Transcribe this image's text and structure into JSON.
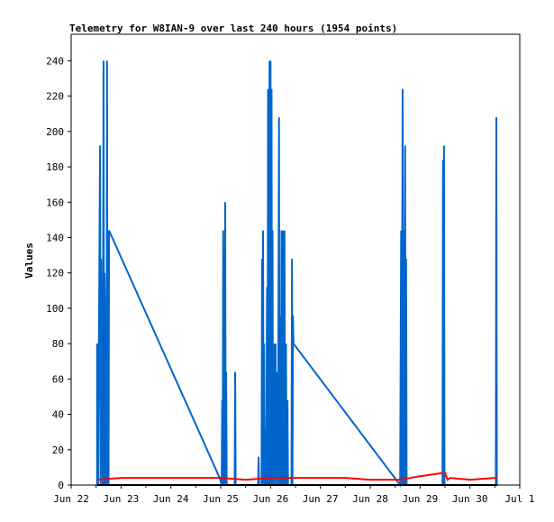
{
  "chart_data": {
    "type": "line",
    "title": "Telemetry for W8IAN-9 over last 240 hours (1954 points)",
    "xlabel": "",
    "ylabel": "Values",
    "xlim": [
      "Jun 22",
      "Jul 1"
    ],
    "ylim": [
      0,
      255
    ],
    "x_ticks": [
      "Jun 22",
      "Jun 23",
      "Jun 24",
      "Jun 25",
      "Jun 26",
      "Jun 27",
      "Jun 28",
      "Jun 29",
      "Jun 30",
      "Jul 1"
    ],
    "y_ticks": [
      0,
      20,
      40,
      60,
      80,
      100,
      120,
      140,
      160,
      180,
      200,
      220,
      240
    ],
    "grid": false,
    "legend": "none",
    "series": [
      {
        "color": "#0066cc",
        "x_unit": "days since Jun 22",
        "points": [
          [
            0.52,
            0
          ],
          [
            0.52,
            80
          ],
          [
            0.54,
            0
          ],
          [
            0.58,
            192
          ],
          [
            0.59,
            0
          ],
          [
            0.6,
            128
          ],
          [
            0.62,
            48
          ],
          [
            0.63,
            0
          ],
          [
            0.64,
            112
          ],
          [
            0.65,
            240
          ],
          [
            0.66,
            0
          ],
          [
            0.67,
            120
          ],
          [
            0.68,
            96
          ],
          [
            0.69,
            0
          ],
          [
            0.7,
            80
          ],
          [
            0.71,
            0
          ],
          [
            0.72,
            240
          ],
          [
            0.73,
            0
          ],
          [
            0.74,
            144
          ],
          [
            0.75,
            0
          ],
          [
            0.76,
            144
          ],
          [
            2.98,
            4
          ],
          [
            3.02,
            0
          ],
          [
            3.03,
            48
          ],
          [
            3.04,
            0
          ],
          [
            3.05,
            144
          ],
          [
            3.06,
            0
          ],
          [
            3.07,
            128
          ],
          [
            3.08,
            0
          ],
          [
            3.09,
            160
          ],
          [
            3.1,
            0
          ],
          [
            3.11,
            64
          ],
          [
            3.12,
            0
          ],
          [
            3.28,
            0
          ],
          [
            3.29,
            64
          ],
          [
            3.3,
            0
          ],
          [
            3.75,
            0
          ],
          [
            3.76,
            16
          ],
          [
            3.77,
            0
          ],
          [
            3.82,
            0
          ],
          [
            3.83,
            128
          ],
          [
            3.84,
            0
          ],
          [
            3.85,
            144
          ],
          [
            3.86,
            0
          ],
          [
            3.87,
            80
          ],
          [
            3.88,
            0
          ],
          [
            3.9,
            32
          ],
          [
            3.91,
            0
          ],
          [
            3.93,
            112
          ],
          [
            3.94,
            0
          ],
          [
            3.95,
            224
          ],
          [
            3.96,
            0
          ],
          [
            3.98,
            240
          ],
          [
            3.99,
            0
          ],
          [
            4.0,
            240
          ],
          [
            4.01,
            0
          ],
          [
            4.02,
            224
          ],
          [
            4.03,
            0
          ],
          [
            4.04,
            144
          ],
          [
            4.05,
            0
          ],
          [
            4.07,
            80
          ],
          [
            4.08,
            32
          ],
          [
            4.09,
            0
          ],
          [
            4.1,
            80
          ],
          [
            4.11,
            0
          ],
          [
            4.13,
            64
          ],
          [
            4.14,
            32
          ],
          [
            4.15,
            0
          ],
          [
            4.16,
            112
          ],
          [
            4.17,
            208
          ],
          [
            4.18,
            0
          ],
          [
            4.2,
            96
          ],
          [
            4.21,
            0
          ],
          [
            4.22,
            144
          ],
          [
            4.23,
            0
          ],
          [
            4.25,
            144
          ],
          [
            4.26,
            0
          ],
          [
            4.28,
            144
          ],
          [
            4.29,
            0
          ],
          [
            4.31,
            80
          ],
          [
            4.32,
            0
          ],
          [
            4.34,
            48
          ],
          [
            4.35,
            0
          ],
          [
            4.42,
            0
          ],
          [
            4.43,
            128
          ],
          [
            4.44,
            0
          ],
          [
            4.45,
            96
          ],
          [
            4.46,
            80
          ],
          [
            6.6,
            0
          ],
          [
            6.62,
            144
          ],
          [
            6.63,
            0
          ],
          [
            6.65,
            224
          ],
          [
            6.66,
            0
          ],
          [
            6.67,
            144
          ],
          [
            6.68,
            0
          ],
          [
            6.7,
            192
          ],
          [
            6.71,
            0
          ],
          [
            6.72,
            128
          ],
          [
            6.73,
            0
          ],
          [
            7.45,
            0
          ],
          [
            7.46,
            184
          ],
          [
            7.47,
            0
          ],
          [
            7.48,
            192
          ],
          [
            7.49,
            0
          ],
          [
            8.52,
            0
          ],
          [
            8.53,
            208
          ],
          [
            8.54,
            0
          ]
        ]
      },
      {
        "color": "#ff0000",
        "x_unit": "days since Jun 22",
        "points": [
          [
            0.52,
            3
          ],
          [
            1.0,
            4
          ],
          [
            2.0,
            4
          ],
          [
            3.0,
            4
          ],
          [
            3.5,
            3
          ],
          [
            4.0,
            4
          ],
          [
            4.5,
            4
          ],
          [
            5.0,
            4
          ],
          [
            5.5,
            4
          ],
          [
            6.0,
            3
          ],
          [
            6.6,
            3
          ],
          [
            7.0,
            5
          ],
          [
            7.5,
            7
          ],
          [
            7.55,
            3
          ],
          [
            7.6,
            4
          ],
          [
            8.0,
            3
          ],
          [
            8.5,
            4
          ],
          [
            8.55,
            4
          ]
        ]
      },
      {
        "color": "#000000",
        "x_unit": "days since Jun 22",
        "points": [
          [
            0.52,
            0
          ],
          [
            8.55,
            0
          ]
        ]
      }
    ]
  }
}
